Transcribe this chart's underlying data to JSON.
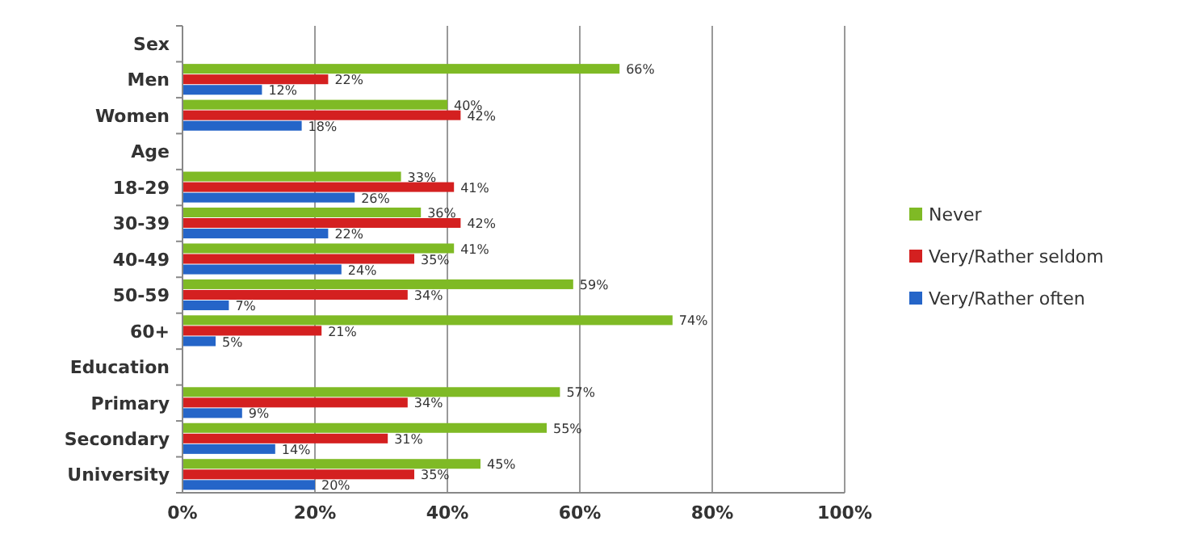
{
  "chart_data": {
    "type": "bar",
    "orientation": "horizontal",
    "categories": [
      "Sex",
      "Men",
      "Women",
      "Age",
      "18-29",
      "30-39",
      "40-49",
      "50-59",
      "60+",
      "Education",
      "Primary",
      "Secondary",
      "University"
    ],
    "series": [
      {
        "name": "Never",
        "color": "#7fba25",
        "values": [
          null,
          66,
          40,
          null,
          33,
          36,
          41,
          59,
          74,
          null,
          57,
          55,
          45
        ],
        "value_labels": [
          null,
          "66%",
          "40%",
          null,
          "33%",
          "36%",
          "41%",
          "59%",
          "74%",
          null,
          "57%",
          "55%",
          "45%"
        ]
      },
      {
        "name": "Very/Rather seldom",
        "color": "#d42020",
        "values": [
          null,
          22,
          42,
          null,
          41,
          42,
          35,
          34,
          21,
          null,
          34,
          31,
          35
        ],
        "value_labels": [
          null,
          "22%",
          "42%",
          null,
          "41%",
          "42%",
          "35%",
          "34%",
          "21%",
          null,
          "34%",
          "31%",
          "35%"
        ]
      },
      {
        "name": "Very/Rather often",
        "color": "#2565c8",
        "values": [
          null,
          12,
          18,
          null,
          26,
          22,
          24,
          7,
          5,
          null,
          9,
          14,
          20
        ],
        "value_labels": [
          null,
          "12%",
          "18%",
          null,
          "26%",
          "22%",
          "24%",
          "7%",
          "5%",
          null,
          "9%",
          "14%",
          "20%"
        ]
      }
    ],
    "xlim": [
      0,
      100
    ],
    "xticks": [
      {
        "value": 0,
        "label": "0%"
      },
      {
        "value": 20,
        "label": "20%"
      },
      {
        "value": 40,
        "label": "40%"
      },
      {
        "value": 60,
        "label": "60%"
      },
      {
        "value": 80,
        "label": "80%"
      },
      {
        "value": 100,
        "label": "100%"
      }
    ],
    "grid": "x",
    "legend": "right"
  }
}
